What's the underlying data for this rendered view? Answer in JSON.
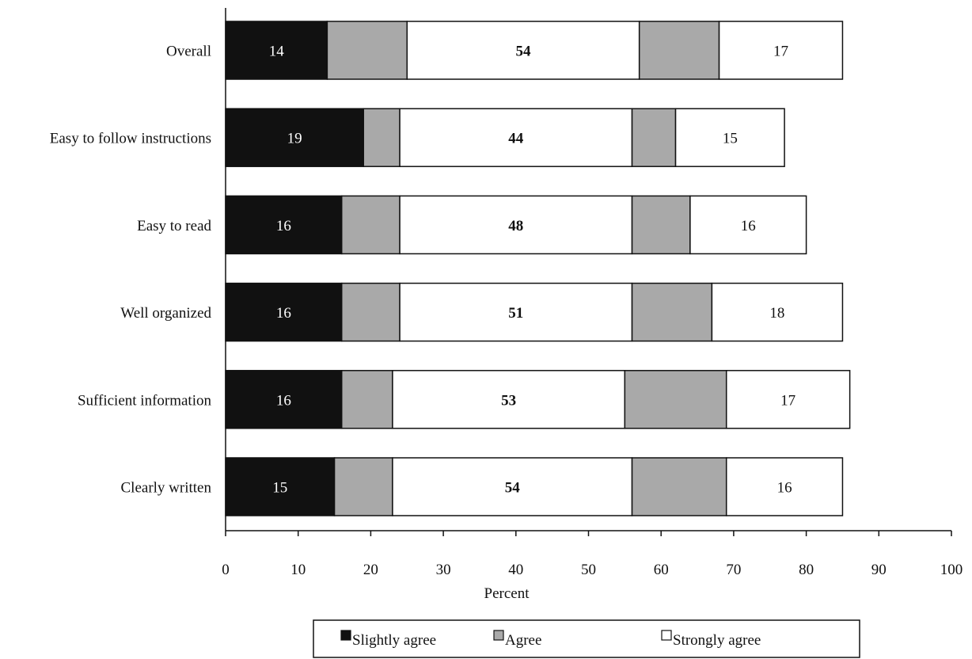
{
  "chart_data": {
    "type": "bar",
    "orientation": "horizontal",
    "stacked": true,
    "categories": [
      "Overall",
      "Easy to follow instructions",
      "Easy to read",
      "Well organized",
      "Sufficient information",
      "Clearly written"
    ],
    "series": [
      {
        "name": "Slightly agree",
        "color": "#111111",
        "values": [
          14,
          19,
          16,
          16,
          16,
          15
        ]
      },
      {
        "name": "Agree",
        "color": "#a9a9a9",
        "values": [
          11,
          5,
          8,
          8,
          7,
          8
        ]
      },
      {
        "name": "Strongly agree",
        "color": "#ffffff",
        "values": [
          32,
          32,
          32,
          32,
          32,
          33
        ]
      },
      {
        "name": "Agree",
        "color": "#a9a9a9",
        "values": [
          11,
          6,
          8,
          11,
          14,
          13
        ]
      },
      {
        "name": "Strongly agree",
        "color": "#ffffff",
        "values": [
          17,
          15,
          16,
          18,
          17,
          16
        ]
      }
    ],
    "data_labels": [
      [
        "14",
        "54",
        "17"
      ],
      [
        "19",
        "44",
        "15"
      ],
      [
        "16",
        "48",
        "16"
      ],
      [
        "16",
        "51",
        "18"
      ],
      [
        "16",
        "53",
        "17"
      ],
      [
        "15",
        "54",
        "16"
      ]
    ],
    "xlabel": "Percent",
    "xlim": [
      0,
      100
    ],
    "xticks": [
      0,
      10,
      20,
      30,
      40,
      50,
      60,
      70,
      80,
      90,
      100
    ],
    "legend": {
      "position": "bottom",
      "entries": [
        {
          "label": "Slightly agree",
          "color": "#111111"
        },
        {
          "label": "Agree",
          "color": "#a9a9a9"
        },
        {
          "label": "Strongly agree",
          "color": "#ffffff"
        }
      ]
    },
    "grid": false
  }
}
